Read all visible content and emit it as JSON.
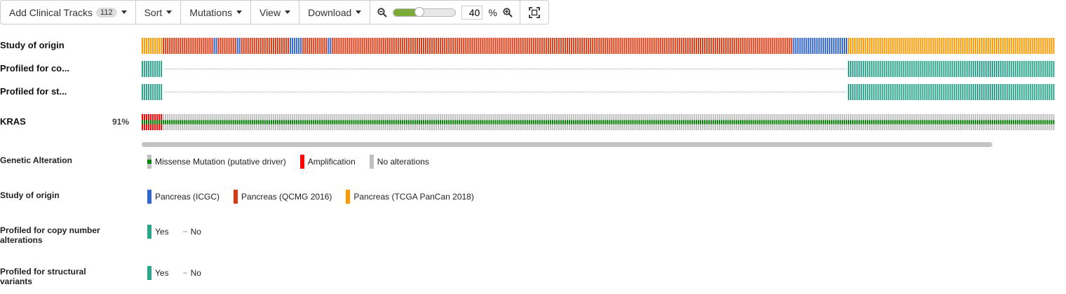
{
  "toolbar": {
    "add_tracks_label": "Add Clinical Tracks",
    "add_tracks_count": "112",
    "sort_label": "Sort",
    "mutations_label": "Mutations",
    "view_label": "View",
    "download_label": "Download",
    "zoom_value": "40",
    "zoom_unit": "%",
    "zoom_level": 0.4
  },
  "tracks": {
    "study": "Study of origin",
    "profiled_cna": "Profiled for co...",
    "profiled_sv": "Profiled for st...",
    "gene": "KRAS",
    "gene_percent": "91%"
  },
  "legend": {
    "genetic": {
      "title": "Genetic Alteration",
      "items": [
        "Missense Mutation (putative driver)",
        "Amplification",
        "No alterations"
      ]
    },
    "study": {
      "title": "Study of origin",
      "items": [
        "Pancreas (ICGC)",
        "Pancreas (QCMG 2016)",
        "Pancreas (TCGA PanCan 2018)"
      ]
    },
    "profiled_cna": {
      "title": "Profiled for copy number alterations",
      "yes": "Yes",
      "no": "No"
    },
    "profiled_sv": {
      "title": "Profiled for structural variants",
      "yes": "Yes",
      "no": "No"
    }
  },
  "colors": {
    "icgc": "#3366cc",
    "qcmg": "#dc3912",
    "tcga": "#ff9900",
    "profiled": "#2ca58d",
    "missense": "#008000",
    "amplification": "#ff0000",
    "no_alteration": "#c0c0c0",
    "unprofiled_line": "#bbbbbb"
  },
  "icons": [
    "zoom-out-icon",
    "zoom-in-icon",
    "fit-to-screen-icon",
    "dropdown-caret-icon"
  ]
}
